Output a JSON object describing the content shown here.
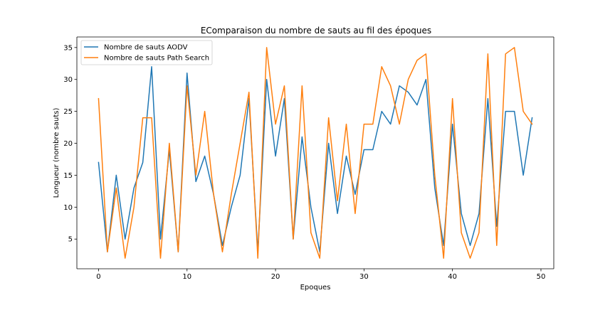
{
  "chart_data": {
    "type": "line",
    "title": "EComparaison du nombre de sauts au fil des époques",
    "xlabel": "Epoques",
    "ylabel": "Longueur (nombre sauts)",
    "xlim": [
      -2.45,
      51.45
    ],
    "ylim": [
      0.35,
      36.65
    ],
    "xticks": [
      0,
      10,
      20,
      30,
      40,
      50
    ],
    "yticks": [
      5,
      10,
      15,
      20,
      25,
      30,
      35
    ],
    "grid": false,
    "legend_position": "upper-left",
    "x": [
      0,
      1,
      2,
      3,
      4,
      5,
      6,
      7,
      8,
      9,
      10,
      11,
      12,
      13,
      14,
      15,
      16,
      17,
      18,
      19,
      20,
      21,
      22,
      23,
      24,
      25,
      26,
      27,
      28,
      29,
      30,
      31,
      32,
      33,
      34,
      35,
      36,
      37,
      38,
      39,
      40,
      41,
      42,
      43,
      44,
      45,
      46,
      47,
      48,
      49
    ],
    "series": [
      {
        "name": "Nombre de sauts AODV",
        "color": "#1f77b4",
        "values": [
          17,
          3,
          15,
          5,
          13,
          17,
          32,
          5,
          19,
          3,
          31,
          14,
          18,
          12,
          4,
          10,
          15,
          27,
          3,
          30,
          18,
          27,
          5,
          21,
          10,
          3,
          20,
          9,
          18,
          12,
          19,
          19,
          25,
          23,
          29,
          28,
          26,
          30,
          13,
          4,
          23,
          9,
          4,
          9,
          27,
          7,
          25,
          25,
          15,
          24
        ]
      },
      {
        "name": "Nombre de sauts Path Search",
        "color": "#ff7f0e",
        "values": [
          27,
          3,
          13,
          2,
          10,
          24,
          24,
          2,
          20,
          3,
          29,
          15,
          25,
          12,
          3,
          12,
          20,
          28,
          2,
          35,
          23,
          29,
          5,
          29,
          6,
          2,
          24,
          11,
          23,
          9,
          23,
          23,
          32,
          29,
          23,
          30,
          33,
          34,
          15,
          2,
          27,
          6,
          2,
          6,
          34,
          4,
          34,
          35,
          25,
          23
        ]
      }
    ]
  }
}
